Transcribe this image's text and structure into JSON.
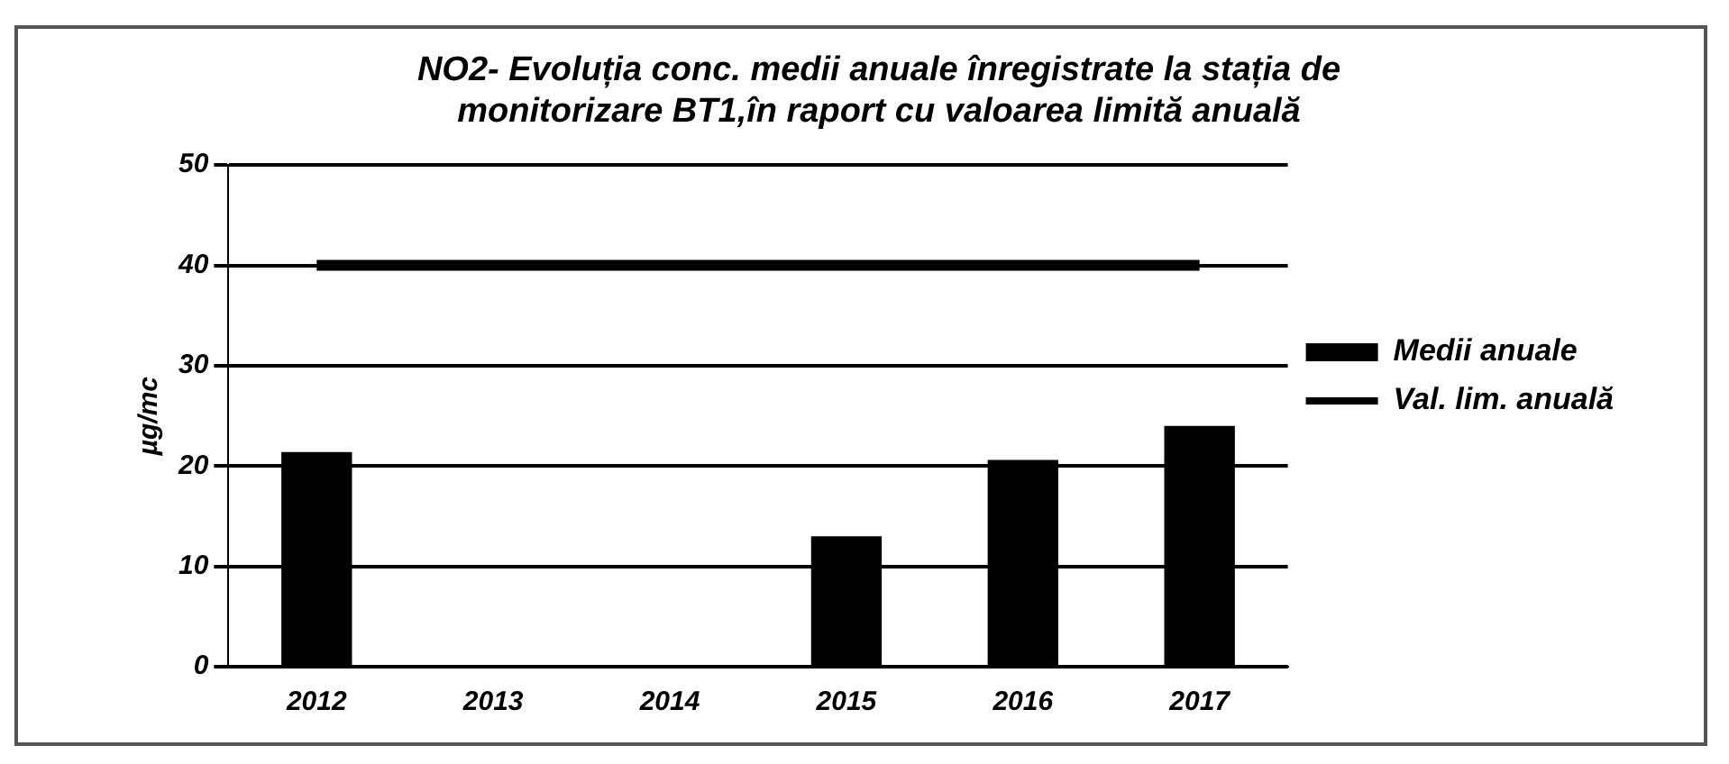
{
  "chart_data": {
    "type": "bar",
    "title": "NO2- Evoluția conc. medii anuale înregistrate la stația de monitorizare BT1,în raport cu valoarea limită anuală",
    "ylabel": "µg/mc",
    "categories": [
      "2012",
      "2013",
      "2014",
      "2015",
      "2016",
      "2017"
    ],
    "series": [
      {
        "name": "Medii anuale",
        "color": "#000000",
        "values": [
          21.4,
          null,
          null,
          13,
          20.6,
          24
        ]
      },
      {
        "name": "Val. lim. anuală",
        "type": "line",
        "color": "#000000",
        "values": [
          40,
          40,
          40,
          40,
          40,
          40
        ]
      }
    ],
    "ylim": [
      0,
      50
    ],
    "yticks": [
      0,
      10,
      20,
      30,
      40,
      50
    ],
    "grid": "y",
    "legend": "right",
    "marker": "none"
  }
}
